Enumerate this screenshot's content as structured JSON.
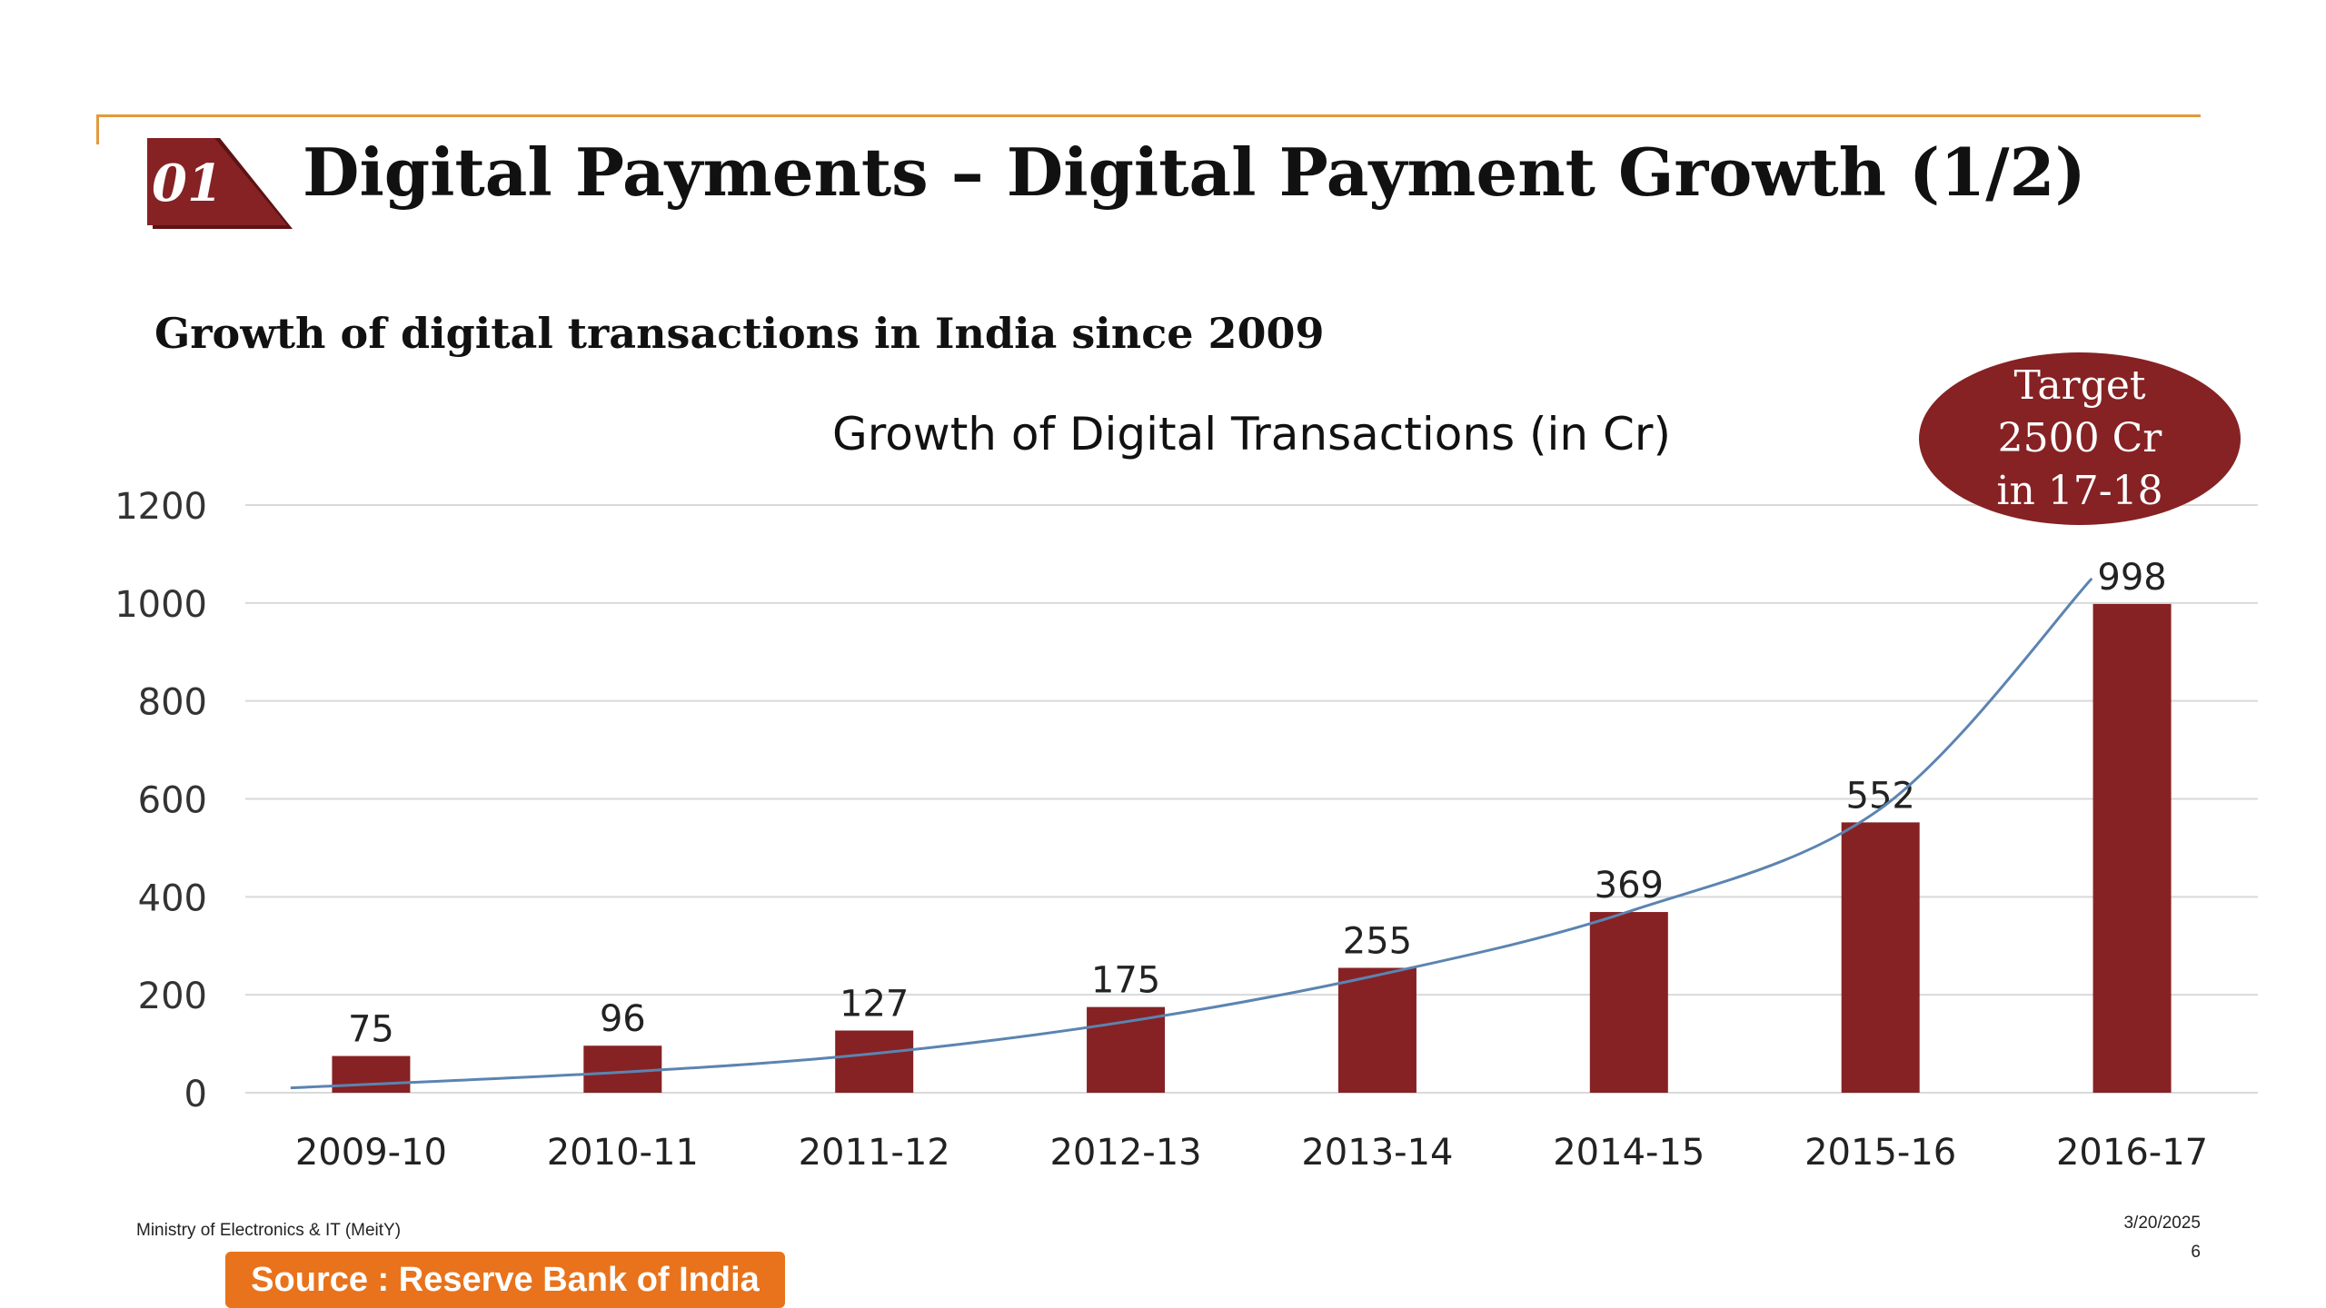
{
  "slide": {
    "number": "01",
    "title": "Digital Payments – Digital Payment Growth (1/2)",
    "subtitle": "Growth of digital transactions in India since 2009",
    "target": {
      "line1": "Target",
      "line2": "2500 Cr",
      "line3": "in 17-18"
    },
    "footer": {
      "ministry": "Ministry of Electronics & IT (MeitY)",
      "date": "3/20/2025",
      "page": "6"
    },
    "source": "Source : Reserve Bank of India"
  },
  "colors": {
    "bar": "#862224",
    "trend": "#5b84b1",
    "accent_rule": "#e39a3c",
    "source_box": "#e8731c",
    "grid": "#d9d9d9"
  },
  "chart_data": {
    "type": "bar",
    "title": "Growth of Digital Transactions (in Cr)",
    "xlabel": "",
    "ylabel": "",
    "categories": [
      "2009-10",
      "2010-11",
      "2011-12",
      "2012-13",
      "2013-14",
      "2014-15",
      "2015-16",
      "2016-17"
    ],
    "series": [
      {
        "values": [
          75,
          96,
          127,
          175,
          255,
          369,
          552,
          998
        ],
        "data_labels": [
          "75",
          "96",
          "127",
          "175",
          "255",
          "369",
          "552",
          "998"
        ]
      }
    ],
    "trendline": {
      "type": "exponential",
      "approx_values": [
        10,
        42,
        80,
        145,
        240,
        370,
        580,
        1050
      ]
    },
    "ylim": [
      0,
      1200
    ],
    "yticks": [
      0,
      200,
      400,
      600,
      800,
      1000,
      1200
    ],
    "ytick_labels": [
      "0",
      "200",
      "400",
      "600",
      "800",
      "1000",
      "1200"
    ],
    "grid": true,
    "legend": "none"
  }
}
